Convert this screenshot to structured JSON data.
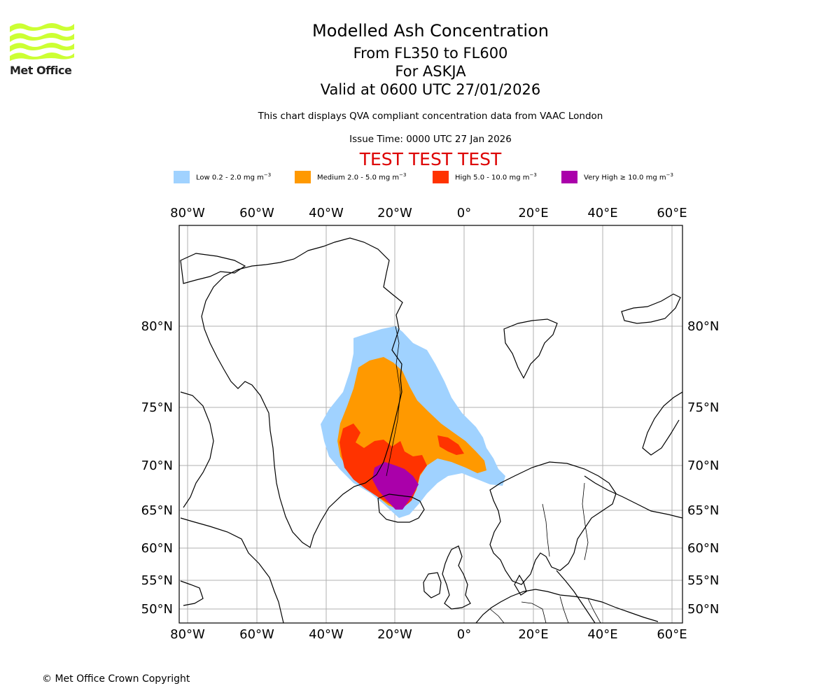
{
  "logo": {
    "name": "Met Office",
    "icon": "met-office-wave-logo",
    "color": "#ccff33"
  },
  "title": {
    "line1": "Modelled Ash Concentration",
    "line2": "From FL350 to FL600",
    "line3": "For ASKJA",
    "line4": "Valid at 0600 UTC 27/01/2026"
  },
  "note": "This chart displays QVA compliant concentration data from VAAC London",
  "issue_time": "Issue Time: 0000 UTC 27 Jan 2026",
  "test_banner": "TEST TEST TEST",
  "legend": [
    {
      "label": "Low 0.2 - 2.0 mg m",
      "unit_exp": "−3",
      "color": "#a0d2ff"
    },
    {
      "label": "Medium 2.0 - 5.0 mg m",
      "unit_exp": "−3",
      "color": "#ff9900"
    },
    {
      "label": "High 5.0 - 10.0 mg m",
      "unit_exp": "−3",
      "color": "#ff3300"
    },
    {
      "label": "Very High ≥ 10.0 mg m",
      "unit_exp": "−3",
      "color": "#aa00aa"
    }
  ],
  "map": {
    "lon_labels": [
      "80°W",
      "60°W",
      "40°W",
      "20°W",
      "0°",
      "20°E",
      "40°E",
      "60°E"
    ],
    "lat_labels": [
      "80°N",
      "75°N",
      "70°N",
      "65°N",
      "60°N",
      "55°N",
      "50°N"
    ],
    "volcano": "ASKJA"
  },
  "copyright": "© Met Office Crown Copyright"
}
